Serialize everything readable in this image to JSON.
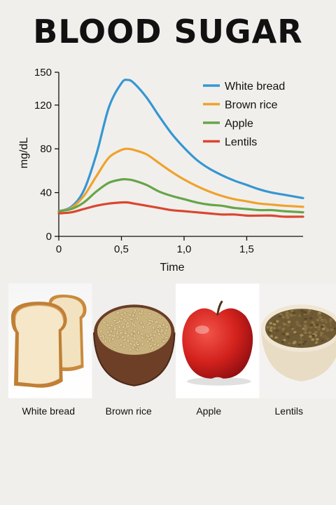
{
  "page": {
    "title": "BLOOD SUGAR"
  },
  "colors": {
    "background": "#f1efec"
  },
  "chart_data": {
    "type": "line",
    "title": "",
    "xlabel": "Time",
    "ylabel": "mg/dL",
    "xlim": [
      0,
      1.95
    ],
    "ylim": [
      0,
      150
    ],
    "x_ticks": [
      0,
      0.5,
      1.0,
      1.5
    ],
    "x_tick_labels": [
      "0",
      "0,5",
      "1,0",
      "1,5"
    ],
    "y_ticks": [
      0,
      40,
      80,
      120,
      150
    ],
    "y_tick_labels": [
      "0",
      "40",
      "80",
      "120",
      "150"
    ],
    "legend_position": "top-right",
    "x": [
      0,
      0.1,
      0.2,
      0.3,
      0.4,
      0.5,
      0.55,
      0.6,
      0.7,
      0.8,
      0.9,
      1.0,
      1.1,
      1.2,
      1.3,
      1.4,
      1.5,
      1.6,
      1.7,
      1.8,
      1.95
    ],
    "series": [
      {
        "name": "White bread",
        "color": "#3597d3",
        "values": [
          23,
          27,
          42,
          75,
          118,
          140,
          143,
          140,
          127,
          110,
          94,
          81,
          70,
          62,
          56,
          51,
          47,
          43,
          40,
          38,
          35
        ]
      },
      {
        "name": "Brown rice",
        "color": "#efa22c",
        "values": [
          23,
          26,
          37,
          55,
          72,
          79,
          80,
          79,
          75,
          67,
          59,
          52,
          46,
          41,
          37,
          34,
          32,
          30,
          29,
          28,
          27
        ]
      },
      {
        "name": "Apple",
        "color": "#66a548",
        "values": [
          23,
          25,
          31,
          41,
          49,
          52,
          52,
          51,
          47,
          41,
          37,
          34,
          31,
          29,
          28,
          26,
          25,
          24,
          24,
          23,
          22
        ]
      },
      {
        "name": "Lentils",
        "color": "#da4630",
        "values": [
          21,
          22,
          25,
          28,
          30,
          31,
          31,
          30,
          28,
          26,
          24,
          23,
          22,
          21,
          20,
          20,
          19,
          19,
          19,
          18,
          18
        ]
      }
    ]
  },
  "foods": [
    {
      "label": "White bread",
      "icon": "white-bread-photo"
    },
    {
      "label": "Brown rice",
      "icon": "brown-rice-photo"
    },
    {
      "label": "Apple",
      "icon": "apple-photo"
    },
    {
      "label": "Lentils",
      "icon": "lentils-photo"
    }
  ]
}
